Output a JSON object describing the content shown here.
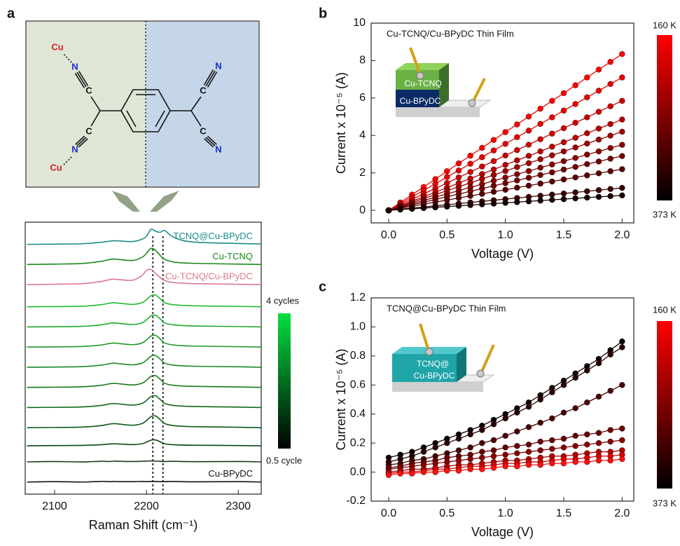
{
  "chart_data": [
    {
      "type": "line",
      "panel_label": "a",
      "x": [
        2070,
        2100,
        2130,
        2150,
        2160,
        2165,
        2170,
        2185,
        2195,
        2200,
        2205,
        2210,
        2215,
        2220,
        2230,
        2250,
        2300,
        2325
      ],
      "xlim": [
        2068,
        2325
      ],
      "xticks": [
        2100,
        2200,
        2300
      ],
      "ylim": [
        -0.6,
        12.9
      ],
      "x_label": "Raman Shift (cm⁻¹)",
      "reference_lines": [
        2207,
        2218
      ],
      "structure": {
        "atoms": [
          "Cu",
          "N",
          "C",
          "C",
          "N",
          "Cu",
          "C",
          "N",
          "C",
          "N"
        ]
      },
      "colorbar": {
        "colors": [
          "#00e040",
          "#000000"
        ],
        "labels": [
          "4 cycles",
          "0.5 cycle"
        ]
      },
      "series": [
        {
          "name": "TCNQ@Cu-BPyDC",
          "color": "#1a8a8a",
          "values": [
            11.8,
            11.81,
            11.83,
            11.9,
            11.96,
            11.98,
            11.97,
            11.94,
            12.05,
            12.2,
            12.55,
            12.45,
            12.4,
            12.48,
            12.15,
            11.92,
            11.84,
            11.82
          ]
        },
        {
          "name": "Cu-TCNQ",
          "color": "#1a8a1a",
          "values": [
            10.8,
            10.82,
            10.85,
            10.95,
            11.05,
            11.07,
            11.05,
            11.0,
            11.15,
            11.35,
            11.6,
            11.5,
            11.25,
            11.05,
            10.92,
            10.86,
            10.82,
            10.8
          ]
        },
        {
          "name": "Cu-TCNQ/Cu-BPyDC",
          "color": "#d9788a",
          "values": [
            9.8,
            9.82,
            9.85,
            9.95,
            10.05,
            10.07,
            10.05,
            10.02,
            10.25,
            10.5,
            10.55,
            10.35,
            10.15,
            10.0,
            9.9,
            9.85,
            9.82,
            9.8
          ]
        },
        {
          "color": "#22bb30",
          "values": [
            8.7,
            8.71,
            8.73,
            8.8,
            8.88,
            8.9,
            8.88,
            8.82,
            8.9,
            9.05,
            9.25,
            9.28,
            9.1,
            8.9,
            8.8,
            8.75,
            8.72,
            8.7
          ]
        },
        {
          "color": "#20a82a",
          "values": [
            7.7,
            7.71,
            7.73,
            7.8,
            7.88,
            7.9,
            7.88,
            7.82,
            7.9,
            8.05,
            8.25,
            8.28,
            8.1,
            7.9,
            7.8,
            7.75,
            7.72,
            7.7
          ]
        },
        {
          "color": "#1e9828",
          "values": [
            6.7,
            6.71,
            6.73,
            6.8,
            6.88,
            6.9,
            6.88,
            6.82,
            6.9,
            7.05,
            7.25,
            7.28,
            7.1,
            6.9,
            6.8,
            6.75,
            6.72,
            6.7
          ]
        },
        {
          "color": "#1a8824",
          "values": [
            5.7,
            5.71,
            5.73,
            5.8,
            5.88,
            5.9,
            5.88,
            5.82,
            5.9,
            6.05,
            6.25,
            6.28,
            6.1,
            5.9,
            5.8,
            5.75,
            5.72,
            5.7
          ]
        },
        {
          "color": "#167820",
          "values": [
            4.7,
            4.71,
            4.73,
            4.8,
            4.88,
            4.9,
            4.88,
            4.82,
            4.9,
            5.05,
            5.25,
            5.28,
            5.1,
            4.9,
            4.8,
            4.75,
            4.72,
            4.7
          ]
        },
        {
          "color": "#12681a",
          "values": [
            3.7,
            3.71,
            3.73,
            3.8,
            3.88,
            3.9,
            3.88,
            3.82,
            3.9,
            4.05,
            4.25,
            4.28,
            4.1,
            3.9,
            3.8,
            3.75,
            3.72,
            3.7
          ]
        },
        {
          "color": "#0e5814",
          "values": [
            2.7,
            2.71,
            2.73,
            2.8,
            2.88,
            2.9,
            2.88,
            2.82,
            2.9,
            3.05,
            3.25,
            3.28,
            3.1,
            2.9,
            2.8,
            2.75,
            2.72,
            2.7
          ]
        },
        {
          "color": "#0a4810",
          "values": [
            1.8,
            1.81,
            1.82,
            1.85,
            1.89,
            1.9,
            1.89,
            1.86,
            1.9,
            1.98,
            2.08,
            2.09,
            2.0,
            1.9,
            1.85,
            1.83,
            1.81,
            1.8
          ]
        },
        {
          "color": "#1a3a1a",
          "values": [
            1,
            1.02,
            1,
            1.03,
            1.02,
            1.04,
            1.03,
            1.02,
            1.03,
            1.04,
            1.05,
            1.04,
            1.03,
            1.02,
            1.03,
            1.01,
            1.02,
            1
          ]
        },
        {
          "name": "Cu-BPyDC",
          "color": "#111111",
          "values": [
            0,
            0.02,
            0,
            0.03,
            0.02,
            0.03,
            0.02,
            0.02,
            0.03,
            0.02,
            0.03,
            0.03,
            0.02,
            0.02,
            0.03,
            0.01,
            0.02,
            0
          ]
        }
      ]
    },
    {
      "type": "line",
      "markers": true,
      "panel_label": "b",
      "annotation": "Cu-TCNQ/Cu-BPyDC Thin Film",
      "inset_labels": [
        "Cu-TCNQ",
        "Cu-BPyDC"
      ],
      "x": [
        0,
        0.1,
        0.2,
        0.3,
        0.4,
        0.5,
        0.6,
        0.7,
        0.8,
        0.9,
        1,
        1.1,
        1.2,
        1.3,
        1.4,
        1.5,
        1.6,
        1.7,
        1.8,
        1.9,
        2
      ],
      "xlim": [
        -0.15,
        2.1
      ],
      "xticks": [
        {
          "value": 0,
          "label": "0.0"
        },
        0.5,
        {
          "value": 1,
          "label": "1.0"
        },
        1.5,
        {
          "value": 2,
          "label": "2.0"
        }
      ],
      "ylim": [
        -0.67,
        10
      ],
      "yticks": [
        0,
        2,
        4,
        6,
        8,
        10
      ],
      "x_label": "Voltage (V)",
      "y_label": "Current x 10⁻⁵ (A)",
      "colorbar": {
        "colors": [
          "#ff0000",
          "#000000"
        ],
        "labels": [
          "160 K",
          "373 K"
        ]
      },
      "series": [
        {
          "color": "#ff0000",
          "values": [
            0,
            0.42,
            0.84,
            1.25,
            1.67,
            2.09,
            2.51,
            2.92,
            3.34,
            3.76,
            4.18,
            4.59,
            5.01,
            5.43,
            5.85,
            6.26,
            6.68,
            7.1,
            7.52,
            7.93,
            8.35
          ]
        },
        {
          "color": "#e80000",
          "values": [
            0,
            0.36,
            0.71,
            1.07,
            1.42,
            1.78,
            2.13,
            2.49,
            2.84,
            3.2,
            3.55,
            3.91,
            4.26,
            4.62,
            4.97,
            5.33,
            5.68,
            6.04,
            6.39,
            6.75,
            7.1
          ]
        },
        {
          "color": "#d00000",
          "values": [
            0,
            0.29,
            0.59,
            0.88,
            1.17,
            1.46,
            1.76,
            2.05,
            2.34,
            2.63,
            2.93,
            3.22,
            3.51,
            3.8,
            4.1,
            4.39,
            4.68,
            4.97,
            5.27,
            5.56,
            5.85
          ]
        },
        {
          "color": "#b80000",
          "values": [
            0,
            0.24,
            0.49,
            0.73,
            0.97,
            1.21,
            1.46,
            1.7,
            1.94,
            2.18,
            2.43,
            2.67,
            2.91,
            3.15,
            3.4,
            3.64,
            3.88,
            4.12,
            4.37,
            4.61,
            4.85
          ]
        },
        {
          "color": "#a00000",
          "values": [
            0,
            0.21,
            0.42,
            0.63,
            0.84,
            1.05,
            1.26,
            1.47,
            1.68,
            1.89,
            2.1,
            2.31,
            2.52,
            2.73,
            2.94,
            3.15,
            3.36,
            3.57,
            3.78,
            3.99,
            4.2
          ]
        },
        {
          "color": "#880000",
          "values": [
            0,
            0.18,
            0.35,
            0.53,
            0.7,
            0.88,
            1.05,
            1.23,
            1.4,
            1.58,
            1.75,
            1.93,
            2.1,
            2.28,
            2.45,
            2.63,
            2.8,
            2.98,
            3.15,
            3.33,
            3.5
          ]
        },
        {
          "color": "#700000",
          "values": [
            0,
            0.15,
            0.29,
            0.44,
            0.58,
            0.73,
            0.87,
            1.02,
            1.16,
            1.31,
            1.45,
            1.6,
            1.74,
            1.89,
            2.03,
            2.18,
            2.32,
            2.47,
            2.61,
            2.76,
            2.9
          ]
        },
        {
          "color": "#580000",
          "values": [
            0,
            0.11,
            0.22,
            0.33,
            0.44,
            0.55,
            0.66,
            0.77,
            0.88,
            0.99,
            1.1,
            1.21,
            1.32,
            1.43,
            1.54,
            1.65,
            1.76,
            1.87,
            1.98,
            2.09,
            2.2
          ]
        },
        {
          "color": "#380000",
          "values": [
            0,
            0.06,
            0.12,
            0.18,
            0.24,
            0.3,
            0.36,
            0.42,
            0.48,
            0.54,
            0.6,
            0.66,
            0.72,
            0.78,
            0.84,
            0.9,
            0.96,
            1.02,
            1.08,
            1.14,
            1.2
          ]
        },
        {
          "color": "#180000",
          "values": [
            0,
            0.04,
            0.08,
            0.12,
            0.16,
            0.2,
            0.24,
            0.28,
            0.32,
            0.36,
            0.4,
            0.44,
            0.48,
            0.52,
            0.56,
            0.6,
            0.64,
            0.68,
            0.72,
            0.76,
            0.8
          ]
        }
      ]
    },
    {
      "type": "line",
      "markers": true,
      "panel_label": "c",
      "annotation": "TCNQ@Cu-BPyDC Thin Film",
      "inset_labels": [
        "TCNQ@",
        "Cu-BPyDC"
      ],
      "x": [
        0,
        0.1,
        0.2,
        0.3,
        0.4,
        0.5,
        0.6,
        0.7,
        0.8,
        0.9,
        1,
        1.1,
        1.2,
        1.3,
        1.4,
        1.5,
        1.6,
        1.7,
        1.8,
        1.9,
        2
      ],
      "xlim": [
        -0.15,
        2.1
      ],
      "xticks": [
        {
          "value": 0,
          "label": "0.0"
        },
        0.5,
        {
          "value": 1,
          "label": "1.0"
        },
        1.5,
        {
          "value": 2,
          "label": "2.0"
        }
      ],
      "ylim": [
        -0.2,
        1.2
      ],
      "yticks": [
        -0.2,
        {
          "value": 0,
          "label": "0.0"
        },
        0.2,
        0.4,
        0.6,
        0.8,
        {
          "value": 1,
          "label": "1.0"
        },
        1.2
      ],
      "x_label": "Voltage (V)",
      "y_label": "Current x 10⁻⁵ (A)",
      "colorbar": {
        "colors": [
          "#ff0000",
          "#000000"
        ],
        "labels": [
          "160 K",
          "373 K"
        ]
      },
      "series": [
        {
          "color": "#100000",
          "values": [
            0.1,
            0.12,
            0.14,
            0.17,
            0.2,
            0.23,
            0.26,
            0.29,
            0.32,
            0.36,
            0.4,
            0.44,
            0.48,
            0.53,
            0.58,
            0.63,
            0.68,
            0.73,
            0.78,
            0.84,
            0.9
          ]
        },
        {
          "color": "#280000",
          "values": [
            0.07,
            0.09,
            0.11,
            0.14,
            0.17,
            0.2,
            0.23,
            0.26,
            0.29,
            0.33,
            0.37,
            0.41,
            0.45,
            0.5,
            0.55,
            0.6,
            0.65,
            0.7,
            0.75,
            0.81,
            0.86
          ]
        },
        {
          "color": "#480000",
          "values": [
            0.05,
            0.06,
            0.08,
            0.09,
            0.11,
            0.13,
            0.15,
            0.17,
            0.2,
            0.22,
            0.25,
            0.28,
            0.31,
            0.34,
            0.37,
            0.41,
            0.44,
            0.48,
            0.52,
            0.56,
            0.6
          ]
        },
        {
          "color": "#680000",
          "values": [
            0.03,
            0.04,
            0.06,
            0.07,
            0.08,
            0.1,
            0.11,
            0.12,
            0.14,
            0.15,
            0.17,
            0.18,
            0.19,
            0.21,
            0.22,
            0.23,
            0.25,
            0.26,
            0.27,
            0.29,
            0.3
          ]
        },
        {
          "color": "#880000",
          "values": [
            0.02,
            0.03,
            0.04,
            0.05,
            0.06,
            0.07,
            0.08,
            0.09,
            0.1,
            0.11,
            0.12,
            0.13,
            0.14,
            0.15,
            0.16,
            0.17,
            0.18,
            0.19,
            0.2,
            0.21,
            0.22
          ]
        },
        {
          "color": "#b00000",
          "values": [
            0,
            0.01,
            0.02,
            0.02,
            0.03,
            0.04,
            0.05,
            0.05,
            0.06,
            0.07,
            0.08,
            0.08,
            0.09,
            0.1,
            0.11,
            0.11,
            0.12,
            0.13,
            0.14,
            0.14,
            0.15
          ]
        },
        {
          "color": "#d80000",
          "values": [
            -0.01,
            0,
            0,
            0.01,
            0.02,
            0.02,
            0.03,
            0.04,
            0.04,
            0.05,
            0.06,
            0.06,
            0.07,
            0.07,
            0.08,
            0.09,
            0.09,
            0.1,
            0.11,
            0.11,
            0.12
          ]
        },
        {
          "color": "#ff1010",
          "values": [
            -0.02,
            -0.01,
            -0.01,
            0,
            0,
            0.01,
            0.01,
            0.02,
            0.02,
            0.03,
            0.04,
            0.04,
            0.05,
            0.05,
            0.06,
            0.06,
            0.07,
            0.07,
            0.08,
            0.08,
            0.09
          ]
        }
      ]
    }
  ]
}
